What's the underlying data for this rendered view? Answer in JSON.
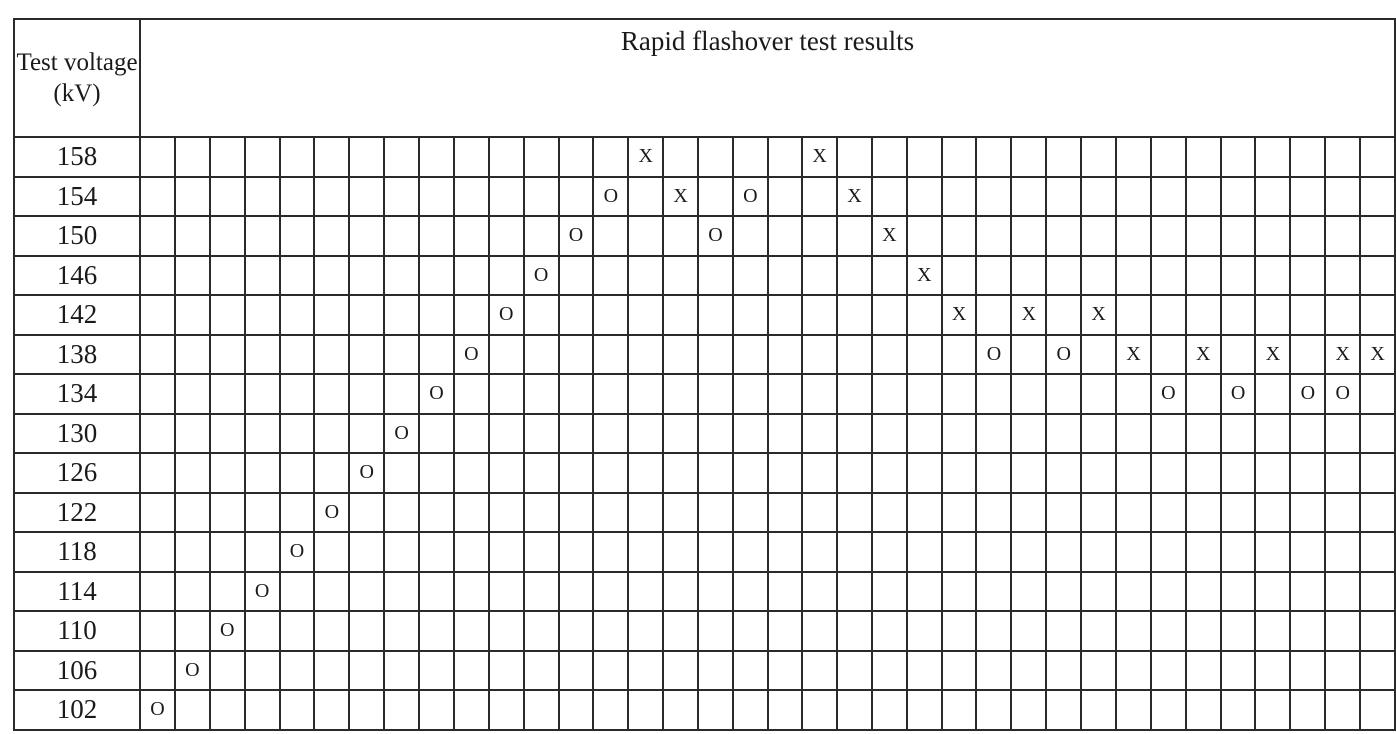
{
  "table": {
    "voltage_header": "Test voltage (kV)",
    "results_header": "Rapid flashover test results",
    "rows": [
      {
        "voltage": "158",
        "cells": [
          "",
          "",
          "",
          "",
          "",
          "",
          "",
          "",
          "",
          "",
          "",
          "",
          "",
          "",
          "X",
          "",
          "",
          "",
          "",
          "X",
          "",
          "",
          "",
          "",
          "",
          "",
          "",
          "",
          "",
          "",
          "",
          "",
          "",
          "",
          "",
          ""
        ]
      },
      {
        "voltage": "154",
        "cells": [
          "",
          "",
          "",
          "",
          "",
          "",
          "",
          "",
          "",
          "",
          "",
          "",
          "",
          "O",
          "",
          "X",
          "",
          "O",
          "",
          "",
          "X",
          "",
          "",
          "",
          "",
          "",
          "",
          "",
          "",
          "",
          "",
          "",
          "",
          "",
          "",
          ""
        ]
      },
      {
        "voltage": "150",
        "cells": [
          "",
          "",
          "",
          "",
          "",
          "",
          "",
          "",
          "",
          "",
          "",
          "",
          "O",
          "",
          "",
          "",
          "O",
          "",
          "",
          "",
          "",
          "X",
          "",
          "",
          "",
          "",
          "",
          "",
          "",
          "",
          "",
          "",
          "",
          "",
          "",
          ""
        ]
      },
      {
        "voltage": "146",
        "cells": [
          "",
          "",
          "",
          "",
          "",
          "",
          "",
          "",
          "",
          "",
          "",
          "O",
          "",
          "",
          "",
          "",
          "",
          "",
          "",
          "",
          "",
          "",
          "X",
          "",
          "",
          "",
          "",
          "",
          "",
          "",
          "",
          "",
          "",
          "",
          "",
          ""
        ]
      },
      {
        "voltage": "142",
        "cells": [
          "",
          "",
          "",
          "",
          "",
          "",
          "",
          "",
          "",
          "",
          "O",
          "",
          "",
          "",
          "",
          "",
          "",
          "",
          "",
          "",
          "",
          "",
          "",
          "X",
          "",
          "X",
          "",
          "X",
          "",
          "",
          "",
          "",
          "",
          "",
          "",
          ""
        ]
      },
      {
        "voltage": "138",
        "cells": [
          "",
          "",
          "",
          "",
          "",
          "",
          "",
          "",
          "",
          "O",
          "",
          "",
          "",
          "",
          "",
          "",
          "",
          "",
          "",
          "",
          "",
          "",
          "",
          "",
          "O",
          "",
          "O",
          "",
          "X",
          "",
          "X",
          "",
          "X",
          "",
          "X",
          "X"
        ]
      },
      {
        "voltage": "134",
        "cells": [
          "",
          "",
          "",
          "",
          "",
          "",
          "",
          "",
          "O",
          "",
          "",
          "",
          "",
          "",
          "",
          "",
          "",
          "",
          "",
          "",
          "",
          "",
          "",
          "",
          "",
          "",
          "",
          "",
          "",
          "O",
          "",
          "O",
          "",
          "O",
          "O",
          ""
        ]
      },
      {
        "voltage": "130",
        "cells": [
          "",
          "",
          "",
          "",
          "",
          "",
          "",
          "O",
          "",
          "",
          "",
          "",
          "",
          "",
          "",
          "",
          "",
          "",
          "",
          "",
          "",
          "",
          "",
          "",
          "",
          "",
          "",
          "",
          "",
          "",
          "",
          "",
          "",
          "",
          "",
          ""
        ]
      },
      {
        "voltage": "126",
        "cells": [
          "",
          "",
          "",
          "",
          "",
          "",
          "O",
          "",
          "",
          "",
          "",
          "",
          "",
          "",
          "",
          "",
          "",
          "",
          "",
          "",
          "",
          "",
          "",
          "",
          "",
          "",
          "",
          "",
          "",
          "",
          "",
          "",
          "",
          "",
          "",
          ""
        ]
      },
      {
        "voltage": "122",
        "cells": [
          "",
          "",
          "",
          "",
          "",
          "O",
          "",
          "",
          "",
          "",
          "",
          "",
          "",
          "",
          "",
          "",
          "",
          "",
          "",
          "",
          "",
          "",
          "",
          "",
          "",
          "",
          "",
          "",
          "",
          "",
          "",
          "",
          "",
          "",
          "",
          ""
        ]
      },
      {
        "voltage": "118",
        "cells": [
          "",
          "",
          "",
          "",
          "O",
          "",
          "",
          "",
          "",
          "",
          "",
          "",
          "",
          "",
          "",
          "",
          "",
          "",
          "",
          "",
          "",
          "",
          "",
          "",
          "",
          "",
          "",
          "",
          "",
          "",
          "",
          "",
          "",
          "",
          "",
          ""
        ]
      },
      {
        "voltage": "114",
        "cells": [
          "",
          "",
          "",
          "O",
          "",
          "",
          "",
          "",
          "",
          "",
          "",
          "",
          "",
          "",
          "",
          "",
          "",
          "",
          "",
          "",
          "",
          "",
          "",
          "",
          "",
          "",
          "",
          "",
          "",
          "",
          "",
          "",
          "",
          "",
          "",
          ""
        ]
      },
      {
        "voltage": "110",
        "cells": [
          "",
          "",
          "O",
          "",
          "",
          "",
          "",
          "",
          "",
          "",
          "",
          "",
          "",
          "",
          "",
          "",
          "",
          "",
          "",
          "",
          "",
          "",
          "",
          "",
          "",
          "",
          "",
          "",
          "",
          "",
          "",
          "",
          "",
          "",
          "",
          ""
        ]
      },
      {
        "voltage": "106",
        "cells": [
          "",
          "O",
          "",
          "",
          "",
          "",
          "",
          "",
          "",
          "",
          "",
          "",
          "",
          "",
          "",
          "",
          "",
          "",
          "",
          "",
          "",
          "",
          "",
          "",
          "",
          "",
          "",
          "",
          "",
          "",
          "",
          "",
          "",
          "",
          "",
          ""
        ]
      },
      {
        "voltage": "102",
        "cells": [
          "O",
          "",
          "",
          "",
          "",
          "",
          "",
          "",
          "",
          "",
          "",
          "",
          "",
          "",
          "",
          "",
          "",
          "",
          "",
          "",
          "",
          "",
          "",
          "",
          "",
          "",
          "",
          "",
          "",
          "",
          "",
          "",
          "",
          "",
          "",
          ""
        ]
      }
    ]
  }
}
